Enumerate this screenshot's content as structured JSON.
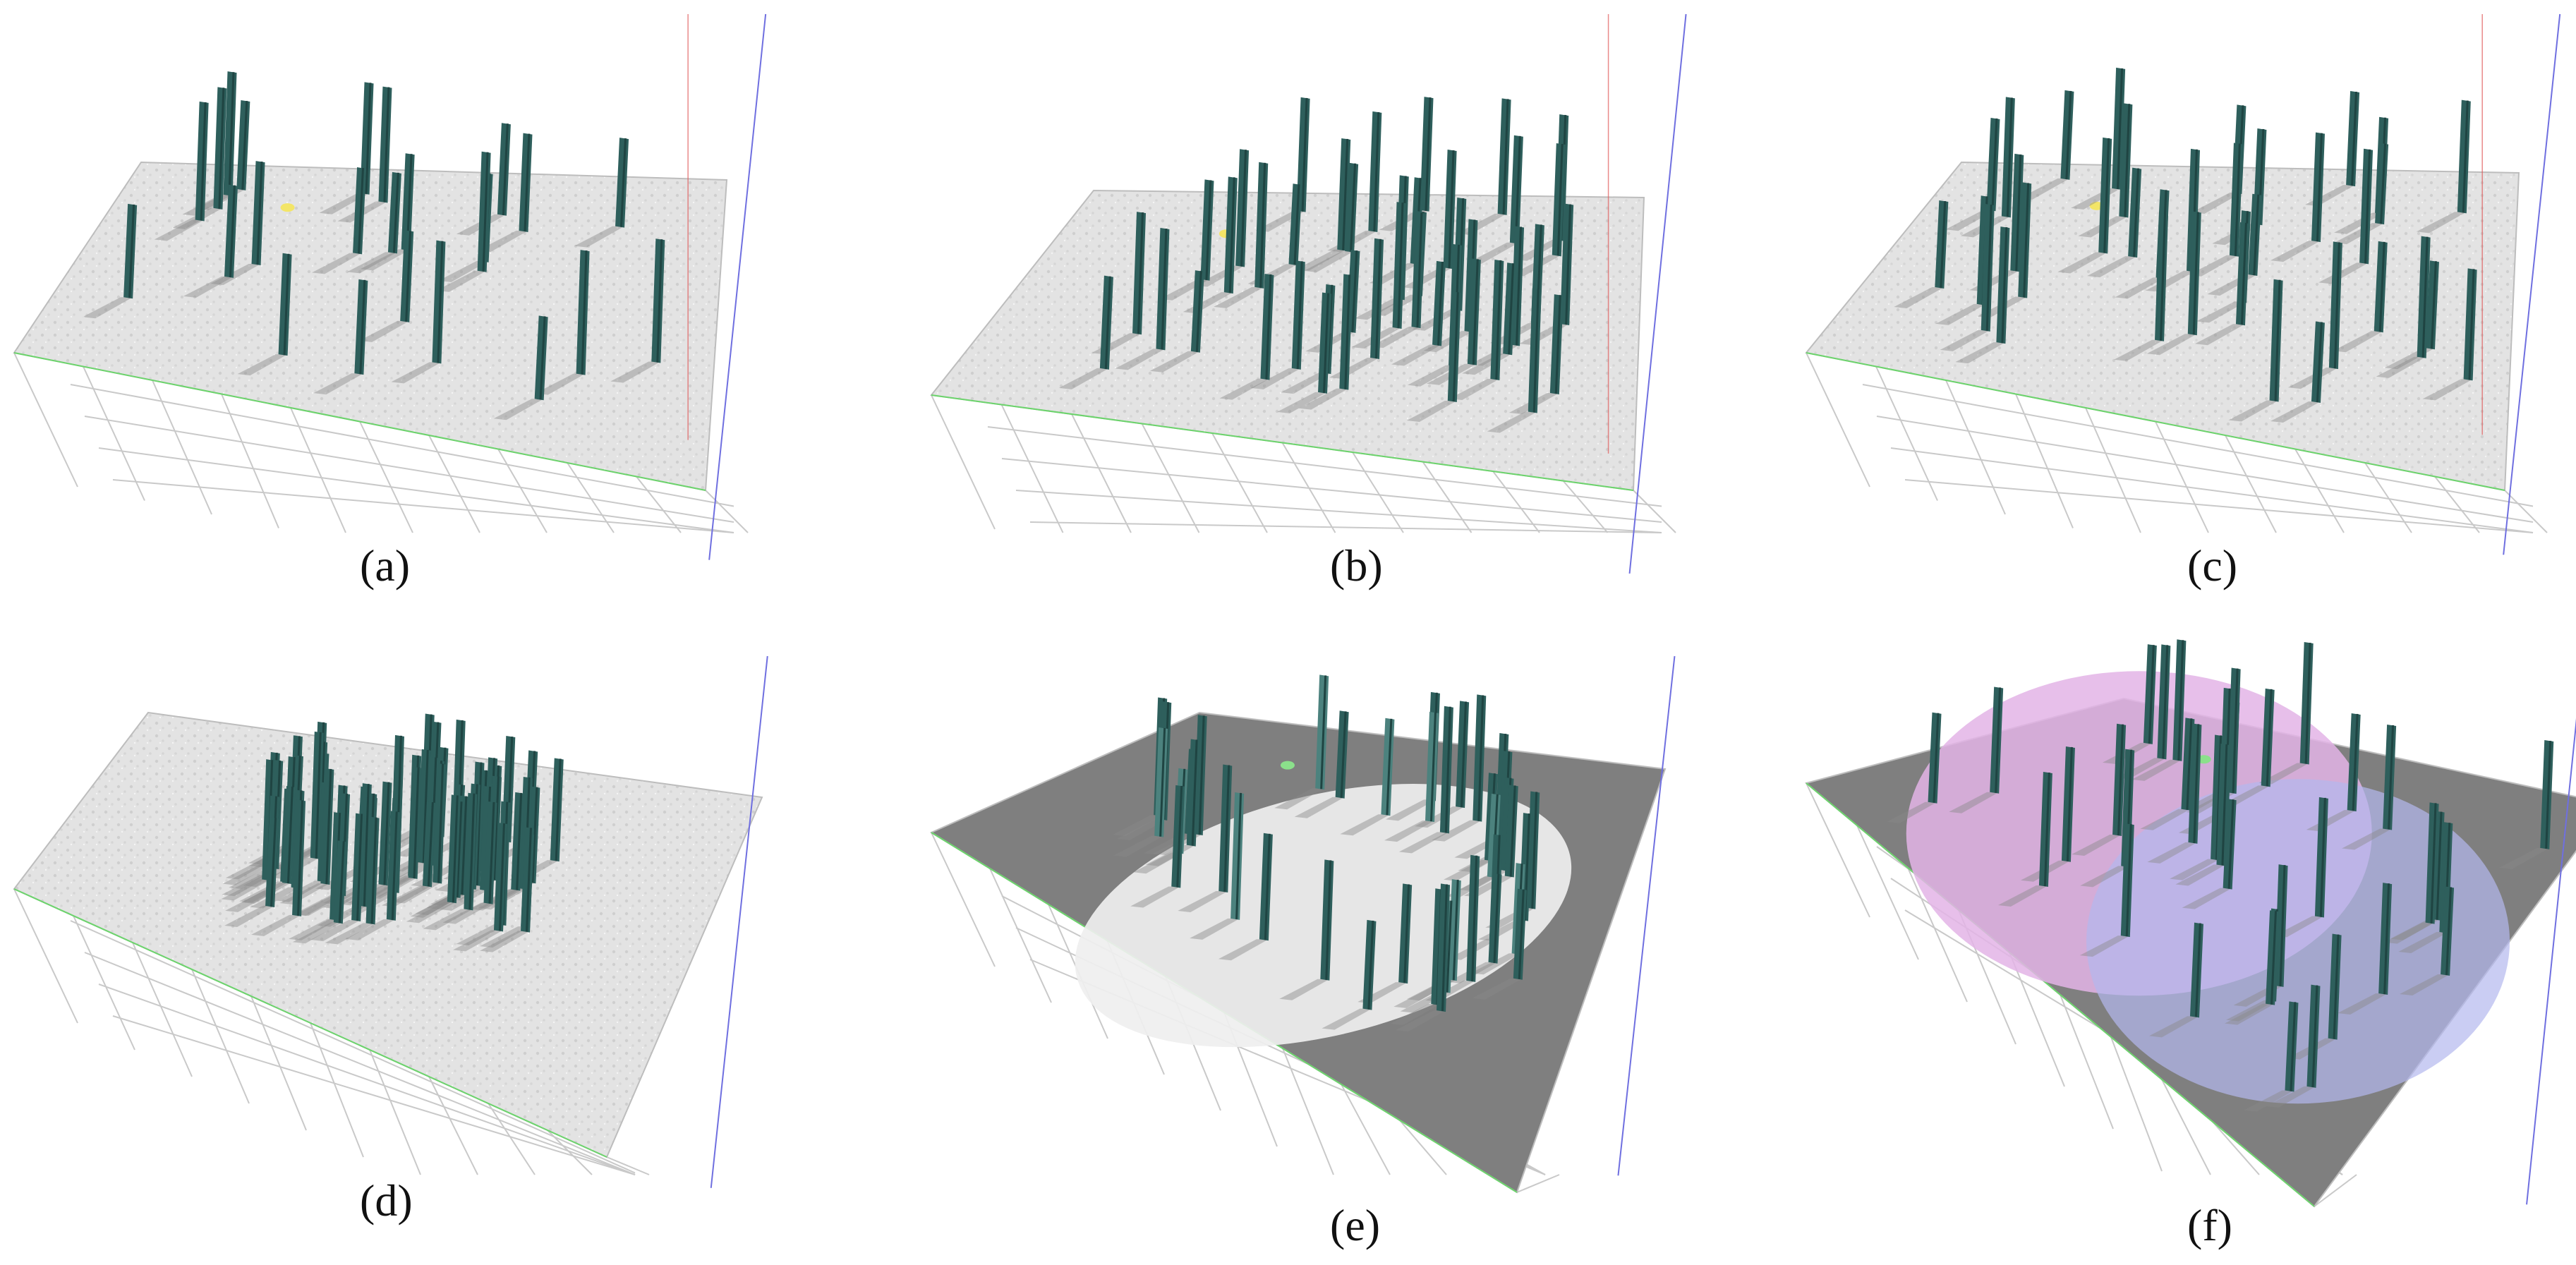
{
  "figure": {
    "panels": [
      {
        "id": "a",
        "caption": "(a)",
        "floor": "textured",
        "layout": "random"
      },
      {
        "id": "b",
        "caption": "(b)",
        "floor": "textured",
        "layout": "dense-center"
      },
      {
        "id": "c",
        "caption": "(c)",
        "floor": "textured",
        "layout": "random"
      },
      {
        "id": "d",
        "caption": "(d)",
        "floor": "textured",
        "layout": "two-clusters"
      },
      {
        "id": "e",
        "caption": "(e)",
        "floor": "dark-with-light-disc",
        "layout": "ring"
      },
      {
        "id": "f",
        "caption": "(f)",
        "floor": "dark-with-two-colored-discs",
        "layout": "random"
      }
    ],
    "colors": {
      "pillar": "#2e5f5c",
      "pillar_dark": "#1f4442",
      "pillar_light": "#4c827e",
      "floor_light": "#e3e3e3",
      "floor_dark": "#7f7f7f",
      "disc_light": "#efefef",
      "disc_pink": "#e3b4e6",
      "disc_blue": "#b4b8ee",
      "grid_line": "#c9c9c9",
      "axis_blue": "#6f6fe0",
      "axis_red": "#e05a5a",
      "axis_green": "#6cd46c",
      "marker_yellow": "#f3e567",
      "marker_green": "#8be08b"
    }
  }
}
